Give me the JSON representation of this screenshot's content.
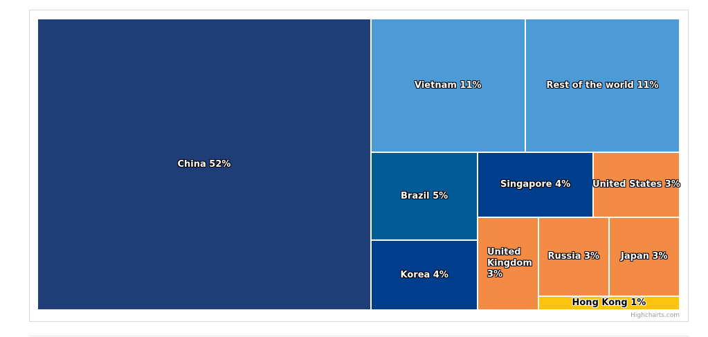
{
  "chart_data": {
    "type": "treemap",
    "title": "",
    "series": [
      {
        "name": "China",
        "label": "China 52%",
        "value": 52,
        "color": "#1F3D77"
      },
      {
        "name": "Vietnam",
        "label": "Vietnam 11%",
        "value": 11,
        "color": "#4D9BD6"
      },
      {
        "name": "Rest of the world",
        "label": "Rest of the world 11%",
        "value": 11,
        "color": "#4D9BD6"
      },
      {
        "name": "Brazil",
        "label": "Brazil 5%",
        "value": 5,
        "color": "#005B96"
      },
      {
        "name": "Singapore",
        "label": "Singapore 4%",
        "value": 4,
        "color": "#003D8C"
      },
      {
        "name": "United States",
        "label": "United States 3%",
        "value": 3,
        "color": "#F48B45"
      },
      {
        "name": "Korea",
        "label": "Korea 4%",
        "value": 4,
        "color": "#003D8C"
      },
      {
        "name": "United Kingdom",
        "label": "United Kingdom 3%",
        "value": 3,
        "color": "#F48B45"
      },
      {
        "name": "Russia",
        "label": "Russia 3%",
        "value": 3,
        "color": "#F48B45"
      },
      {
        "name": "Japan",
        "label": "Japan 3%",
        "value": 3,
        "color": "#F48B45"
      },
      {
        "name": "Hong Kong",
        "label": "Hong Kong 1%",
        "value": 1,
        "color": "#FFC20E"
      }
    ]
  },
  "credits": "Highcharts.com",
  "menu": {
    "icon": "hamburger-menu-icon"
  }
}
